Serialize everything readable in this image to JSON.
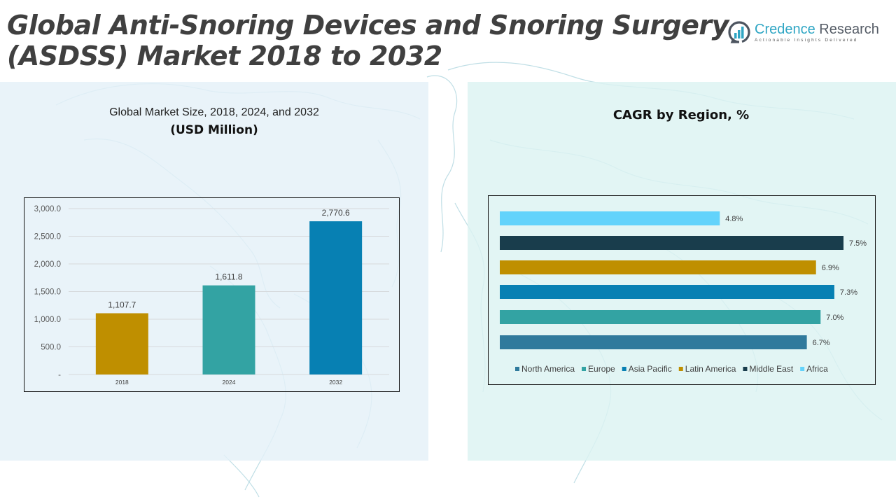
{
  "header": {
    "title_line1": "Global Anti-Snoring Devices and Snoring Surgery",
    "title_line2": "(ASDSS) Market 2018 to 2032"
  },
  "logo": {
    "name_part1": "Credence",
    "name_part2": " Research",
    "tagline": "Actionable Insights Delivered",
    "icon": "bar-chart-circle-icon"
  },
  "colors": {
    "gold": "#bf8f00",
    "teal": "#33a3a3",
    "blue": "#0780b3",
    "steel_blue": "#2f7a9c",
    "dark_navy": "#193d4c",
    "light_blue": "#63d3fb",
    "left_panel_bg": "#e4f0f8",
    "right_panel_bg": "#dcf3f2"
  },
  "chart_data": [
    {
      "type": "bar",
      "title": "Global Market Size, 2018, 2024, and 2032",
      "subtitle": "(USD Million)",
      "xlabel": "",
      "ylabel": "",
      "categories": [
        "2018",
        "2024",
        "2032"
      ],
      "values": [
        1107.7,
        1611.8,
        2770.6
      ],
      "value_labels": [
        "1,107.7",
        "1,611.8",
        "2,770.6"
      ],
      "bar_colors": [
        "#bf8f00",
        "#33a3a3",
        "#0780b3"
      ],
      "ylim": [
        0,
        3000
      ],
      "yticks": [
        0,
        500,
        1000,
        1500,
        2000,
        2500,
        3000
      ],
      "ytick_labels": [
        "-",
        "500.0",
        "1,000.0",
        "1,500.0",
        "2,000.0",
        "2,500.0",
        "3,000.0"
      ],
      "grid": true,
      "legend": "none"
    },
    {
      "type": "bar",
      "orientation": "horizontal",
      "title": "CAGR by Region, %",
      "categories": [
        "North America",
        "Europe",
        "Asia Pacific",
        "Latin America",
        "Middle East",
        "Africa"
      ],
      "values": [
        6.7,
        7.0,
        7.3,
        6.9,
        7.5,
        4.8
      ],
      "value_labels": [
        "6.7%",
        "7.0%",
        "7.3%",
        "6.9%",
        "7.5%",
        "4.8%"
      ],
      "bar_colors": [
        "#2f7a9c",
        "#33a3a3",
        "#0780b3",
        "#bf8f00",
        "#193d4c",
        "#63d3fb"
      ],
      "xlim": [
        0,
        7.5
      ],
      "grid": false,
      "axes_visible": false,
      "legend": "bottom"
    }
  ]
}
